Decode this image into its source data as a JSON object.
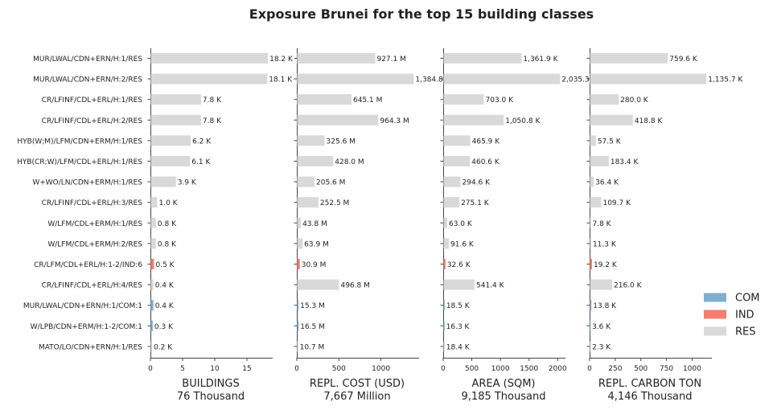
{
  "title": "Exposure Brunei for the top 15 building classes",
  "colors": {
    "COM": "#7fafcf",
    "IND": "#f47f6c",
    "RES": "#d9d9d9"
  },
  "legend": [
    "COM",
    "IND",
    "RES"
  ],
  "chart_data": {
    "type": "bar",
    "orientation": "horizontal",
    "title": "Exposure Brunei for the top 15 building classes",
    "categories": [
      "MUR/LWAL/CDN+ERN/H:1/RES",
      "MUR/LWAL/CDN+ERN/H:2/RES",
      "CR/LFINF/CDL+ERL/H:1/RES",
      "CR/LFINF/CDL+ERL/H:2/RES",
      "HYB(W;M)/LFM/CDN+ERM/H:1/RES",
      "HYB(CR;W)/LFM/CDL+ERL/H:1/RES",
      "W+WO/LN/CDN+ERM/H:1/RES",
      "CR/LFINF/CDL+ERL/H:3/RES",
      "W/LFM/CDL+ERM/H:1/RES",
      "W/LFM/CDL+ERM/H:2/RES",
      "CR/LFM/CDL+ERL/H:1-2/IND:6",
      "CR/LFINF/CDL+ERL/H:4/RES",
      "MUR/LWAL/CDN+ERN/H:1/COM:1",
      "W/LPB/CDN+ERM/H:1-2/COM:1",
      "MATO/LO/CDN+ERN/H:1/RES"
    ],
    "occupancy": [
      "RES",
      "RES",
      "RES",
      "RES",
      "RES",
      "RES",
      "RES",
      "RES",
      "RES",
      "RES",
      "IND",
      "RES",
      "COM",
      "COM",
      "RES"
    ],
    "panels": [
      {
        "xlabel": "BUILDINGS",
        "total": "76 Thousand",
        "xlim": [
          0,
          19
        ],
        "xticks": [
          0,
          5,
          10,
          15
        ],
        "xtick_labels": [
          "0",
          "5",
          "10",
          "15"
        ],
        "values": [
          18.2,
          18.1,
          7.8,
          7.8,
          6.2,
          6.1,
          3.9,
          1.0,
          0.8,
          0.8,
          0.5,
          0.4,
          0.4,
          0.3,
          0.2
        ],
        "labels": [
          "18.2 K",
          "18.1 K",
          "7.8 K",
          "7.8 K",
          "6.2 K",
          "6.1 K",
          "3.9 K",
          "1.0 K",
          "0.8 K",
          "0.8 K",
          "0.5 K",
          "0.4 K",
          "0.4 K",
          "0.3 K",
          "0.2 K"
        ]
      },
      {
        "xlabel": "REPL. COST (USD)",
        "total": "7,667 Million",
        "xlim": [
          0,
          1453
        ],
        "xticks": [
          0,
          500,
          1000
        ],
        "xtick_labels": [
          "0",
          "500",
          "1000"
        ],
        "values": [
          927.1,
          1384.8,
          645.1,
          964.3,
          325.6,
          428.0,
          205.6,
          252.5,
          43.8,
          63.9,
          30.9,
          496.8,
          15.3,
          16.5,
          10.7
        ],
        "labels": [
          "927.1 M",
          "1,384.8",
          "645.1 M",
          "964.3 M",
          "325.6 M",
          "428.0 M",
          "205.6 M",
          "252.5 M",
          "43.8 M",
          "63.9 M",
          "30.9 M",
          "496.8 M",
          "15.3 M",
          "16.5 M",
          "10.7 M"
        ]
      },
      {
        "xlabel": "AREA (SQM)",
        "total": "9,185 Thousand",
        "xlim": [
          0,
          2137
        ],
        "xticks": [
          0,
          500,
          1000,
          1500,
          2000
        ],
        "xtick_labels": [
          "0",
          "500",
          "1000",
          "1500",
          "2000"
        ],
        "values": [
          1361.9,
          2035.3,
          703.0,
          1050.8,
          465.9,
          460.6,
          294.6,
          275.1,
          63.0,
          91.6,
          32.6,
          541.4,
          18.5,
          16.3,
          18.4
        ],
        "labels": [
          "1,361.9 K",
          "2,035.3",
          "703.0 K",
          "1,050.8 K",
          "465.9 K",
          "460.6 K",
          "294.6 K",
          "275.1 K",
          "63.0 K",
          "91.6 K",
          "32.6 K",
          "541.4 K",
          "18.5 K",
          "16.3 K",
          "18.4 K"
        ]
      },
      {
        "xlabel": "REPL. CARBON TON",
        "total": "4,146 Thousand",
        "xlim": [
          0,
          1193
        ],
        "xticks": [
          0,
          250,
          500,
          750,
          1000
        ],
        "xtick_labels": [
          "0",
          "250",
          "500",
          "750",
          "1000"
        ],
        "values": [
          759.6,
          1135.7,
          280.0,
          418.8,
          57.5,
          183.4,
          36.4,
          109.7,
          7.8,
          11.3,
          19.2,
          216.0,
          13.8,
          3.6,
          2.3
        ],
        "labels": [
          "759.6 K",
          "1,135.7 K",
          "280.0 K",
          "418.8 K",
          "57.5 K",
          "183.4 K",
          "36.4 K",
          "109.7 K",
          "7.8 K",
          "11.3 K",
          "19.2 K",
          "216.0 K",
          "13.8 K",
          "3.6 K",
          "2.3 K"
        ]
      }
    ]
  }
}
